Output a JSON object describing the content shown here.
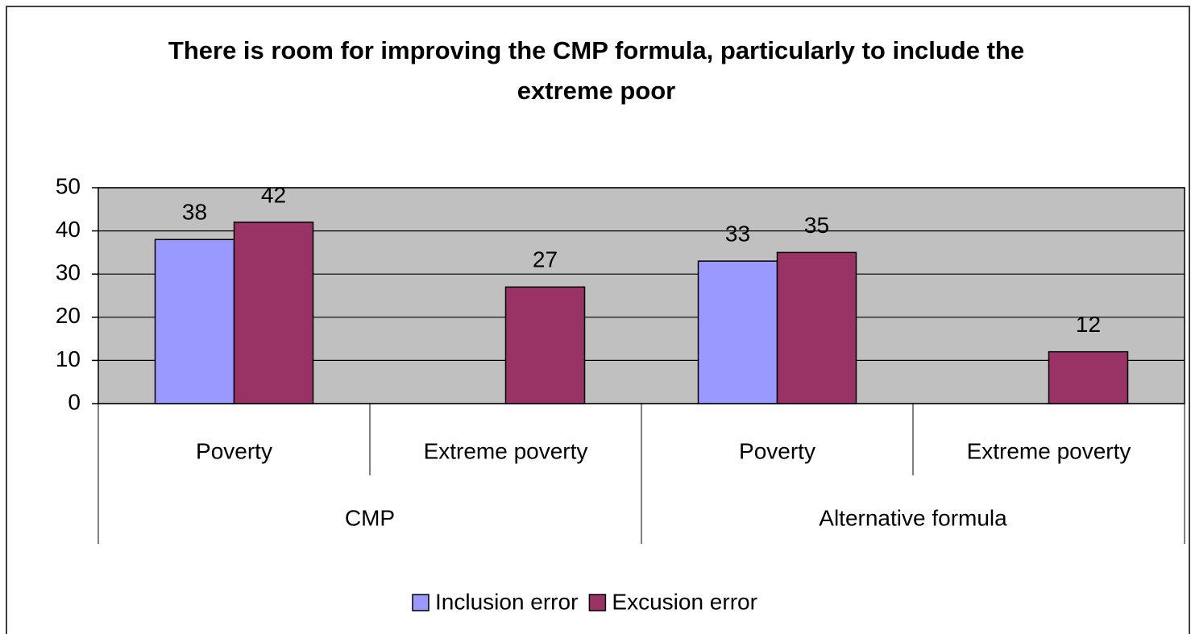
{
  "chart_data": {
    "type": "bar",
    "title": "There is room for improving the CMP formula, particularly to include the extreme poor",
    "groups": [
      {
        "name": "CMP",
        "categories": [
          "Poverty",
          "Extreme poverty"
        ]
      },
      {
        "name": "Alternative formula",
        "categories": [
          "Poverty",
          "Extreme poverty"
        ]
      }
    ],
    "series": [
      {
        "name": "Inclusion error",
        "color": "#9999ff",
        "values": [
          38,
          null,
          33,
          null
        ]
      },
      {
        "name": "Excusion error",
        "color": "#993366",
        "values": [
          42,
          27,
          35,
          12
        ]
      }
    ],
    "ylim": [
      0,
      50
    ],
    "yticks": [
      0,
      10,
      20,
      30,
      40,
      50
    ],
    "grid": true,
    "plot_background": "#c0c0c0",
    "legend": "bottom"
  }
}
